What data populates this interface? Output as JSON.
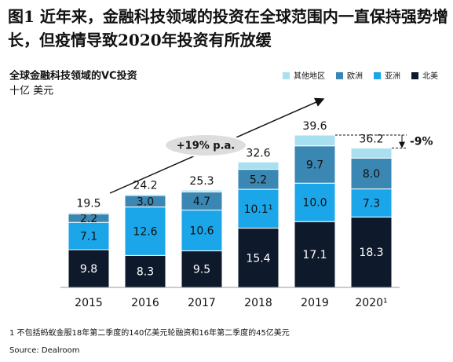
{
  "chart_data": {
    "type": "stacked-bar",
    "title": "图1 近年来，金融科技领域的投资在全球范围内一直保持强势增长，但疫情导致2020年投资有所放缓",
    "subtitle": "全球金融科技领域的VC投资",
    "unit": "十亿 美元",
    "categories": [
      "2015",
      "2016",
      "2017",
      "2018",
      "2019",
      "2020¹"
    ],
    "series": [
      {
        "name": "北美",
        "color": "#0e1a2b",
        "values": [
          9.8,
          8.3,
          9.5,
          15.4,
          17.1,
          18.3
        ]
      },
      {
        "name": "亚洲",
        "color": "#1ba6ea",
        "values": [
          7.1,
          12.6,
          10.6,
          10.1,
          10.0,
          7.3
        ],
        "value_labels": [
          "7.1",
          "12.6",
          "10.6",
          "10.1¹",
          "10.0",
          "7.3"
        ]
      },
      {
        "name": "欧洲",
        "color": "#3b87b3",
        "values": [
          2.2,
          3.0,
          4.7,
          5.2,
          9.7,
          8.0
        ],
        "value_labels": [
          "2.2",
          "3.0",
          "4.7",
          "5.2",
          "9.7",
          "8.0"
        ]
      },
      {
        "name": "其他地区",
        "color": "#a9e0ef",
        "values": [
          0.4,
          0.3,
          0.5,
          1.9,
          2.8,
          2.6
        ]
      }
    ],
    "totals": [
      19.5,
      24.2,
      25.3,
      32.6,
      39.6,
      36.2
    ],
    "growth_annotation": "+19% p.a.",
    "change_annotation": "-9%",
    "footnote": "1 不包括蚂蚁金服18年第二季度的140亿美元轮融资和16年第二季度的45亿美元",
    "source": "Source: Dealroom"
  }
}
